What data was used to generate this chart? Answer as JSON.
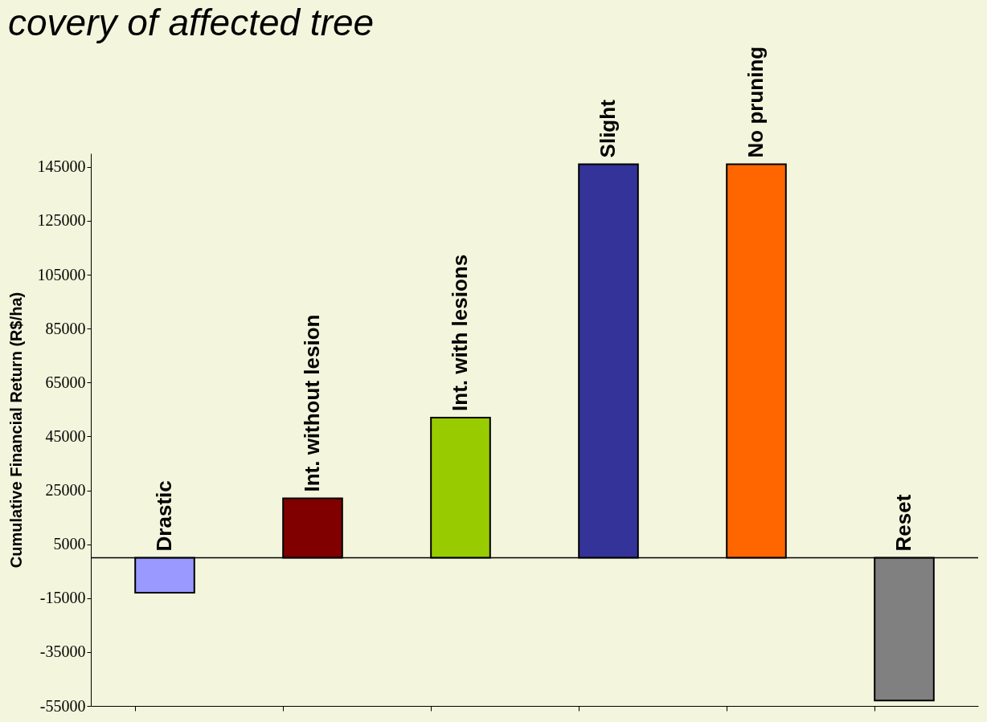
{
  "chart_data": {
    "type": "bar",
    "title": "covery of affected tree",
    "ylabel": "Cumulative Financial Return (R$/ha)",
    "categories": [
      "Drastic",
      "Int. without lesion",
      "Int. with lesions",
      "Slight",
      "No pruning",
      "Reset"
    ],
    "values": [
      -13000,
      22000,
      52000,
      146000,
      146000,
      -53000
    ],
    "colors": [
      "#9999ff",
      "#800000",
      "#99cc00",
      "#333399",
      "#ff6600",
      "#808080"
    ],
    "ylim": [
      -55000,
      150000
    ],
    "yticks": [
      -55000,
      -35000,
      -15000,
      5000,
      25000,
      45000,
      65000,
      85000,
      105000,
      125000,
      145000
    ],
    "grid": false,
    "tick_labels": "y"
  }
}
